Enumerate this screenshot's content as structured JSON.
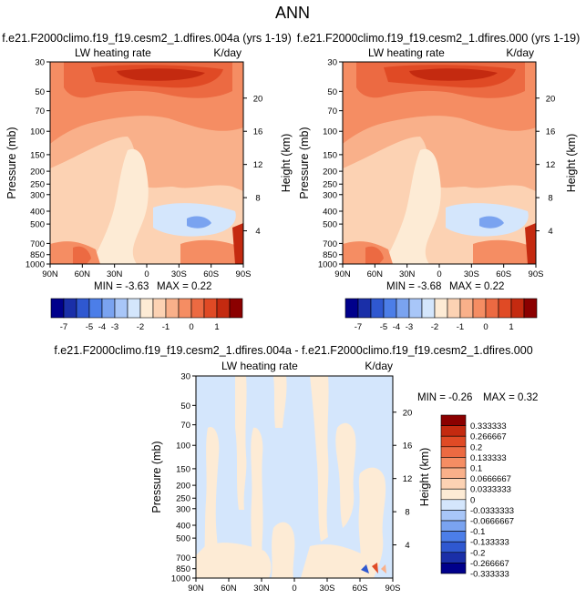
{
  "figure_title": "ANN",
  "chart_data": [
    {
      "type": "heatmap",
      "title": "f.e21.F2000climo.f19_f19.cesm2_1.dfires.004a (yrs 1-19)",
      "subtitle_left": "LW heating rate",
      "subtitle_right": "K/day",
      "ylabel": "Pressure (mb)",
      "ylabel_right": "Height (km)",
      "x_ticks": [
        "90N",
        "60N",
        "30N",
        "0",
        "30S",
        "60S",
        "90S"
      ],
      "y_ticks": [
        "30",
        "50",
        "70",
        "100",
        "150",
        "200",
        "250",
        "300",
        "400",
        "500",
        "700",
        "850",
        "1000"
      ],
      "y_ticks_right": [
        "20",
        "16",
        "12",
        "8",
        "4"
      ],
      "min_label": "MIN = -3.63",
      "max_label": "MAX = 0.22",
      "stats": {
        "min": -3.63,
        "max": 0.22
      },
      "colorbar_ticks": [
        "-7",
        "-5",
        "-4",
        "-3",
        "-2",
        "-1",
        "0",
        "1"
      ]
    },
    {
      "type": "heatmap",
      "title": "f.e21.F2000climo.f19_f19.cesm2_1.dfires.000 (yrs 1-19)",
      "subtitle_left": "LW heating rate",
      "subtitle_right": "K/day",
      "ylabel": "Pressure (mb)",
      "ylabel_right": "Height (km)",
      "x_ticks": [
        "90N",
        "60N",
        "30N",
        "0",
        "30S",
        "60S",
        "90S"
      ],
      "y_ticks": [
        "30",
        "50",
        "70",
        "100",
        "150",
        "200",
        "250",
        "300",
        "400",
        "500",
        "700",
        "850",
        "1000"
      ],
      "y_ticks_right": [
        "20",
        "16",
        "12",
        "8",
        "4"
      ],
      "min_label": "MIN = -3.68",
      "max_label": "MAX = 0.22",
      "stats": {
        "min": -3.68,
        "max": 0.22
      },
      "colorbar_ticks": [
        "-7",
        "-5",
        "-4",
        "-3",
        "-2",
        "-1",
        "0",
        "1"
      ]
    },
    {
      "type": "heatmap",
      "title": "f.e21.F2000climo.f19_f19.cesm2_1.dfires.004a - f.e21.F2000climo.f19_f19.cesm2_1.dfires.000",
      "subtitle_left": "LW heating rate",
      "subtitle_right": "K/day",
      "ylabel": "Pressure (mb)",
      "ylabel_right": "Height (km)",
      "x_ticks": [
        "90N",
        "60N",
        "30N",
        "0",
        "30S",
        "60S",
        "90S"
      ],
      "y_ticks": [
        "30",
        "50",
        "70",
        "100",
        "150",
        "200",
        "250",
        "300",
        "400",
        "500",
        "700",
        "850",
        "1000"
      ],
      "y_ticks_right": [
        "20",
        "16",
        "12",
        "8",
        "4"
      ],
      "min_label": "MIN = -0.26",
      "max_label": "MAX = 0.32",
      "stats": {
        "min": -0.26,
        "max": 0.32
      },
      "colorbar_ticks": [
        "0.333333",
        "0.266667",
        "0.2",
        "0.133333",
        "0.1",
        "0.0666667",
        "0.0333333",
        "0",
        "-0.0333333",
        "-0.0666667",
        "-0.1",
        "-0.133333",
        "-0.2",
        "-0.266667",
        "-0.333333"
      ]
    }
  ],
  "colors": {
    "main_scale": [
      "#00008b",
      "#1a2fa8",
      "#2f58d0",
      "#4c7ee8",
      "#7aa3f0",
      "#a8c6f8",
      "#d4e6fc",
      "#fdebd5",
      "#fcd2b3",
      "#f9b08a",
      "#f58d63",
      "#ec6a42",
      "#e04a25",
      "#c42a10",
      "#8b0000"
    ],
    "diff_scale_top_to_bottom": [
      "#8b0000",
      "#c42a10",
      "#e04a25",
      "#ec6a42",
      "#f58d63",
      "#f9b08a",
      "#fcd2b3",
      "#fdebd5",
      "#d4e6fc",
      "#a8c6f8",
      "#7aa3f0",
      "#4c7ee8",
      "#2f58d0",
      "#1a2fa8",
      "#00008b"
    ]
  }
}
